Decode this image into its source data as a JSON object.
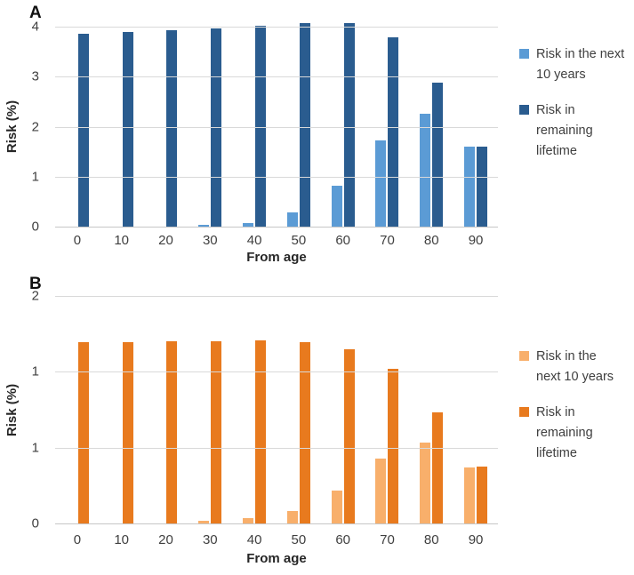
{
  "colors": {
    "light_blue": "#5B9BD5",
    "dark_blue": "#2A5C8F",
    "light_orange": "#F8AF6B",
    "dark_orange": "#E87A1E",
    "gridline": "#D9D9D9"
  },
  "chart_data": [
    {
      "type": "bar",
      "panel": "A",
      "title": "",
      "xlabel": "From age",
      "ylabel": "Risk (%)",
      "ylim": [
        0,
        4
      ],
      "grid": true,
      "legend_position": "right",
      "ytick_values": [
        0,
        1,
        2,
        3,
        4
      ],
      "ytick_labels": [
        "0",
        "1",
        "2",
        "3",
        "4"
      ],
      "categories": [
        "0",
        "10",
        "20",
        "30",
        "40",
        "50",
        "60",
        "70",
        "80",
        "90"
      ],
      "series": [
        {
          "name": "Risk in the next 10 years",
          "legend_lines": [
            "Risk in the next",
            "10 years"
          ],
          "color": "#5B9BD5",
          "values": [
            0,
            0,
            0,
            0.04,
            0.08,
            0.28,
            0.82,
            1.73,
            2.26,
            1.6
          ]
        },
        {
          "name": "Risk in remaining lifetime",
          "legend_lines": [
            "Risk in",
            "remaining",
            "lifetime"
          ],
          "color": "#2A5C8F",
          "values": [
            3.86,
            3.9,
            3.93,
            3.96,
            4.01,
            4.07,
            4.07,
            3.78,
            2.88,
            1.6
          ]
        }
      ]
    },
    {
      "type": "bar",
      "panel": "B",
      "title": "",
      "xlabel": "From age",
      "ylabel": "Risk (%)",
      "ylim": [
        0,
        2
      ],
      "grid": true,
      "legend_position": "right",
      "ytick_values": [
        0,
        0.6667,
        1.3333,
        2
      ],
      "ytick_labels": [
        "0",
        "1",
        "1",
        "2"
      ],
      "categories": [
        "0",
        "10",
        "20",
        "30",
        "40",
        "50",
        "60",
        "70",
        "80",
        "90"
      ],
      "series": [
        {
          "name": "Risk in the next 10 years",
          "legend_lines": [
            "Risk in the",
            "next 10 years"
          ],
          "color": "#F8AF6B",
          "values": [
            0,
            0,
            0,
            0.02,
            0.05,
            0.11,
            0.29,
            0.57,
            0.71,
            0.49
          ]
        },
        {
          "name": "Risk in remaining lifetime",
          "legend_lines": [
            "Risk in",
            "remaining",
            "lifetime"
          ],
          "color": "#E87A1E",
          "values": [
            1.59,
            1.59,
            1.6,
            1.6,
            1.61,
            1.59,
            1.53,
            1.36,
            0.98,
            0.5
          ]
        }
      ]
    }
  ]
}
